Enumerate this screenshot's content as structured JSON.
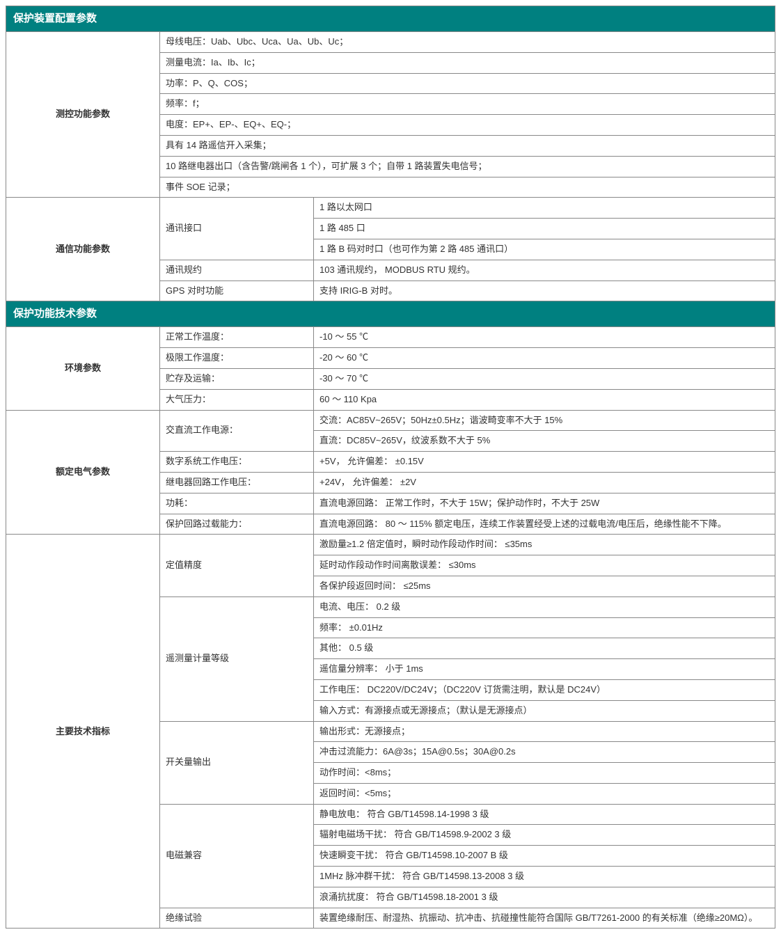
{
  "colors": {
    "headerBg": "#008080",
    "headerText": "#ffffff",
    "border": "#888888",
    "text": "#333333"
  },
  "fontSizes": {
    "header": 15,
    "body": 13
  },
  "section1": {
    "title": "保护装置配置参数",
    "measurement": {
      "label": "测控功能参数",
      "rows": [
        "母线电压：Uab、Ubc、Uca、Ua、Ub、Uc；",
        "测量电流：Ia、Ib、Ic；",
        "功率：P、Q、COS；",
        "频率：f；",
        "电度：EP+、EP-、EQ+、EQ-；",
        "具有 14 路遥信开入采集；",
        "10 路继电器出口（含告警/跳闸各 1 个），可扩展 3 个；自带 1 路装置失电信号；",
        "事件 SOE 记录；"
      ]
    },
    "comm": {
      "label": "通信功能参数",
      "iface": {
        "label": "通讯接口",
        "vals": [
          "1 路以太网口",
          "1 路 485 口",
          "1 路 B 码对时口（也可作为第 2 路 485 通讯口）"
        ]
      },
      "proto": {
        "label": "通讯规约",
        "val": "103 通讯规约， MODBUS RTU 规约。"
      },
      "gps": {
        "label": "GPS 对时功能",
        "val": "支持 IRIG-B 对时。"
      }
    }
  },
  "section2": {
    "title": "保护功能技术参数",
    "env": {
      "label": "环境参数",
      "rows": [
        {
          "k": "正常工作温度：",
          "v": "-10 ～ 55 ℃"
        },
        {
          "k": "极限工作温度：",
          "v": "-20 ～ 60 ℃"
        },
        {
          "k": "贮存及运输：",
          "v": "-30 ～ 70 ℃"
        },
        {
          "k": "大气压力：",
          "v": " 60 ～ 110 Kpa"
        }
      ]
    },
    "elec": {
      "label": "额定电气参数",
      "acdc": {
        "label": "交直流工作电源：",
        "vals": [
          "交流：AC85V~265V；50Hz±0.5Hz；谐波畸变率不大于 15%",
          "直流：DC85V~265V，纹波系数不大于 5%"
        ]
      },
      "rows": [
        {
          "k": "数字系统工作电压：",
          "v": "+5V，   允许偏差： ±0.15V"
        },
        {
          "k": "继电器回路工作电压：",
          "v": "+24V，  允许偏差： ±2V"
        },
        {
          "k": "功耗：",
          "v": "直流电源回路：   正常工作时，不大于 15W；保护动作时，不大于 25W"
        },
        {
          "k": "保护回路过载能力：",
          "v": "直流电源回路：   80 ～ 115% 额定电压，连续工作装置经受上述的过载电流/电压后，绝缘性能不下降。"
        }
      ]
    },
    "tech": {
      "label": "主要技术指标",
      "precision": {
        "label": "定值精度",
        "vals": [
          "激励量≥1.2 倍定值时，瞬时动作段动作时间：  ≤35ms",
          "延时动作段动作时间离散误差：                           ≤30ms",
          "各保护段返回时间：                                             ≤25ms"
        ]
      },
      "telemetry": {
        "label": "遥测量计量等级",
        "vals": [
          "电流、电压：            0.2 级",
          "频率：                       ±0.01Hz",
          "其他：                        0.5 级",
          "遥信量分辨率：       小于 1ms",
          "工作电压：  DC220V/DC24V；（DC220V 订货需注明，默认是 DC24V）",
          "输入方式：有源接点或无源接点；（默认是无源接点）"
        ]
      },
      "switch_out": {
        "label": "开关量输出",
        "vals": [
          "输出形式：无源接点；",
          "冲击过流能力：6A@3s；15A@0.5s；30A@0.2s",
          "动作时间：<8ms；",
          "返回时间：<5ms；"
        ]
      },
      "emc": {
        "label": "电磁兼容",
        "vals": [
          "静电放电：                     符合  GB/T14598.14-1998      3 级",
          "辐射电磁场干扰：         符合  GB/T14598.9-2002        3 级",
          "快速瞬变干扰：             符合  GB/T14598.10-2007      B 级",
          "1MHz 脉冲群干扰：       符合  GB/T14598.13-2008      3 级",
          "浪涌抗扰度：                 符合  GB/T14598.18-2001      3 级"
        ]
      },
      "insulation": {
        "label": "绝缘试验",
        "val": "装置绝缘耐压、耐湿热、抗振动、抗冲击、抗碰撞性能符合国际 GB/T7261-2000 的有关标准（绝缘≥20MΩ）。"
      }
    }
  }
}
